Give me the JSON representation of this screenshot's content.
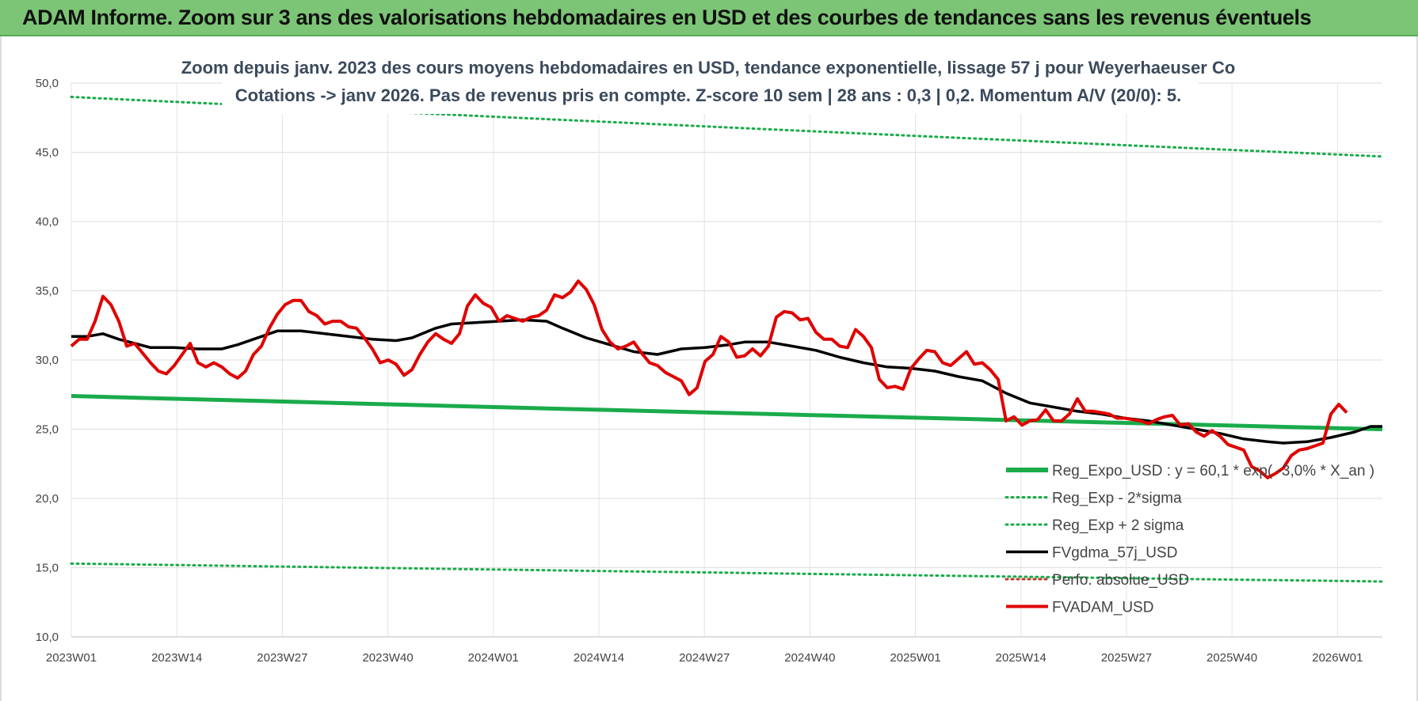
{
  "header": {
    "title": "ADAM Informe. Zoom sur 3 ans des valorisations hebdomadaires en USD et des courbes de tendances sans les revenus éventuels"
  },
  "chart_data": {
    "type": "line",
    "title": "Zoom depuis janv. 2023 des cours moyens hebdomadaires en USD, tendance exponentielle, lissage 57 j pour Weyerhaeuser Co",
    "subtitle": "Cotations -> janv 2026. Pas de revenus pris en compte. Z-score 10 sem | 28 ans : 0,3 | 0,2. Momentum A/V (20/0): 5.",
    "ylim": [
      10,
      50
    ],
    "yticks": [
      "10,0",
      "15,0",
      "20,0",
      "25,0",
      "30,0",
      "35,0",
      "40,0",
      "45,0",
      "50,0"
    ],
    "xticks": [
      "2023W01",
      "2023W14",
      "2023W27",
      "2023W40",
      "2024W01",
      "2024W14",
      "2024W27",
      "2024W40",
      "2025W01",
      "2025W14",
      "2025W27",
      "2025W40",
      "2026W01"
    ],
    "grid": true,
    "legend_position": "bottom-right",
    "x_count": 162,
    "series": [
      {
        "name": "Reg_Expo_USD : y = 60,1 * exp( -3,0% * X_an )",
        "color": "#1aab4b",
        "style": "solid-thick",
        "start": 27.4,
        "end": 25.0
      },
      {
        "name": "Reg_Exp - 2*sigma",
        "color": "#1aab4b",
        "style": "dotted",
        "start": 15.3,
        "end": 14.0
      },
      {
        "name": "Reg_Exp + 2 sigma",
        "color": "#1aab4b",
        "style": "dotted",
        "start": 49.0,
        "end": 44.7
      },
      {
        "name": "FVgdma_57j_USD",
        "color": "#000000",
        "style": "solid",
        "points": [
          [
            0,
            31.7
          ],
          [
            4,
            31.7
          ],
          [
            8,
            31.9
          ],
          [
            12,
            31.5
          ],
          [
            16,
            31.2
          ],
          [
            20,
            30.9
          ],
          [
            26,
            30.9
          ],
          [
            32,
            30.8
          ],
          [
            38,
            30.8
          ],
          [
            42,
            31.1
          ],
          [
            48,
            31.7
          ],
          [
            52,
            32.1
          ],
          [
            58,
            32.1
          ],
          [
            64,
            31.9
          ],
          [
            70,
            31.7
          ],
          [
            76,
            31.5
          ],
          [
            82,
            31.4
          ],
          [
            86,
            31.6
          ],
          [
            92,
            32.3
          ],
          [
            96,
            32.6
          ],
          [
            102,
            32.7
          ],
          [
            108,
            32.8
          ],
          [
            114,
            32.9
          ],
          [
            120,
            32.8
          ],
          [
            124,
            32.3
          ],
          [
            130,
            31.6
          ],
          [
            136,
            31.1
          ],
          [
            142,
            30.6
          ],
          [
            148,
            30.4
          ],
          [
            154,
            30.8
          ],
          [
            160,
            30.9
          ],
          [
            166,
            31.1
          ],
          [
            170,
            31.3
          ],
          [
            176,
            31.3
          ],
          [
            182,
            31.0
          ],
          [
            188,
            30.7
          ],
          [
            194,
            30.2
          ],
          [
            200,
            29.8
          ],
          [
            206,
            29.5
          ],
          [
            212,
            29.4
          ],
          [
            218,
            29.2
          ],
          [
            224,
            28.8
          ],
          [
            230,
            28.5
          ],
          [
            236,
            27.6
          ],
          [
            242,
            26.9
          ],
          [
            248,
            26.6
          ],
          [
            254,
            26.3
          ],
          [
            260,
            26.1
          ],
          [
            266,
            25.8
          ],
          [
            272,
            25.6
          ],
          [
            278,
            25.3
          ],
          [
            284,
            25.0
          ],
          [
            290,
            24.7
          ],
          [
            296,
            24.3
          ],
          [
            302,
            24.1
          ],
          [
            306,
            24.0
          ],
          [
            312,
            24.1
          ],
          [
            318,
            24.4
          ],
          [
            324,
            24.8
          ],
          [
            328,
            25.2
          ],
          [
            331,
            25.2
          ]
        ]
      },
      {
        "name": "Perfo. absolue_USD",
        "color": "#c0392b",
        "style": "dotted",
        "points": []
      },
      {
        "name": "FVADAM_USD",
        "color": "#e00000",
        "style": "solid",
        "points": [
          [
            0,
            31.0
          ],
          [
            2,
            31.5
          ],
          [
            4,
            31.5
          ],
          [
            6,
            32.8
          ],
          [
            8,
            34.6
          ],
          [
            10,
            34.0
          ],
          [
            12,
            32.8
          ],
          [
            14,
            31.0
          ],
          [
            16,
            31.2
          ],
          [
            18,
            30.5
          ],
          [
            20,
            29.8
          ],
          [
            22,
            29.2
          ],
          [
            24,
            29.0
          ],
          [
            26,
            29.6
          ],
          [
            28,
            30.4
          ],
          [
            30,
            31.2
          ],
          [
            32,
            29.8
          ],
          [
            34,
            29.5
          ],
          [
            36,
            29.8
          ],
          [
            38,
            29.5
          ],
          [
            40,
            29.0
          ],
          [
            42,
            28.7
          ],
          [
            44,
            29.2
          ],
          [
            46,
            30.4
          ],
          [
            48,
            31.0
          ],
          [
            50,
            32.3
          ],
          [
            52,
            33.3
          ],
          [
            54,
            34.0
          ],
          [
            56,
            34.3
          ],
          [
            58,
            34.3
          ],
          [
            60,
            33.5
          ],
          [
            62,
            33.2
          ],
          [
            64,
            32.6
          ],
          [
            66,
            32.8
          ],
          [
            68,
            32.8
          ],
          [
            70,
            32.4
          ],
          [
            72,
            32.3
          ],
          [
            74,
            31.6
          ],
          [
            76,
            30.8
          ],
          [
            78,
            29.8
          ],
          [
            80,
            30.0
          ],
          [
            82,
            29.7
          ],
          [
            84,
            28.9
          ],
          [
            86,
            29.3
          ],
          [
            88,
            30.4
          ],
          [
            90,
            31.3
          ],
          [
            92,
            31.9
          ],
          [
            94,
            31.5
          ],
          [
            96,
            31.2
          ],
          [
            98,
            31.9
          ],
          [
            100,
            33.9
          ],
          [
            102,
            34.7
          ],
          [
            104,
            34.1
          ],
          [
            106,
            33.8
          ],
          [
            108,
            32.8
          ],
          [
            110,
            33.2
          ],
          [
            112,
            33.0
          ],
          [
            114,
            32.8
          ],
          [
            116,
            33.1
          ],
          [
            118,
            33.2
          ],
          [
            120,
            33.6
          ],
          [
            122,
            34.7
          ],
          [
            124,
            34.5
          ],
          [
            126,
            34.9
          ],
          [
            128,
            35.7
          ],
          [
            130,
            35.1
          ],
          [
            132,
            34.0
          ],
          [
            134,
            32.2
          ],
          [
            136,
            31.3
          ],
          [
            138,
            30.8
          ],
          [
            140,
            31.0
          ],
          [
            142,
            31.3
          ],
          [
            144,
            30.5
          ],
          [
            146,
            29.8
          ],
          [
            148,
            29.6
          ],
          [
            150,
            29.1
          ],
          [
            152,
            28.8
          ],
          [
            154,
            28.5
          ],
          [
            156,
            27.5
          ],
          [
            158,
            28.0
          ],
          [
            160,
            29.9
          ],
          [
            162,
            30.4
          ],
          [
            164,
            31.7
          ],
          [
            166,
            31.3
          ],
          [
            168,
            30.2
          ],
          [
            170,
            30.3
          ],
          [
            172,
            30.8
          ],
          [
            174,
            30.3
          ],
          [
            176,
            31.0
          ],
          [
            178,
            33.1
          ],
          [
            180,
            33.5
          ],
          [
            182,
            33.4
          ],
          [
            184,
            32.9
          ],
          [
            186,
            33.0
          ],
          [
            188,
            32.0
          ],
          [
            190,
            31.5
          ],
          [
            192,
            31.5
          ],
          [
            194,
            31.0
          ],
          [
            196,
            30.9
          ],
          [
            198,
            32.2
          ],
          [
            200,
            31.7
          ],
          [
            202,
            30.9
          ],
          [
            204,
            28.6
          ],
          [
            206,
            28.0
          ],
          [
            208,
            28.1
          ],
          [
            210,
            27.9
          ],
          [
            212,
            29.4
          ],
          [
            214,
            30.1
          ],
          [
            216,
            30.7
          ],
          [
            218,
            30.6
          ],
          [
            220,
            29.8
          ],
          [
            222,
            29.6
          ],
          [
            224,
            30.1
          ],
          [
            226,
            30.6
          ],
          [
            228,
            29.7
          ],
          [
            230,
            29.8
          ],
          [
            232,
            29.3
          ],
          [
            234,
            28.6
          ],
          [
            236,
            25.6
          ],
          [
            238,
            25.9
          ],
          [
            240,
            25.3
          ],
          [
            242,
            25.6
          ],
          [
            244,
            25.7
          ],
          [
            246,
            26.4
          ],
          [
            248,
            25.6
          ],
          [
            250,
            25.6
          ],
          [
            252,
            26.1
          ],
          [
            254,
            27.2
          ],
          [
            256,
            26.3
          ],
          [
            258,
            26.3
          ],
          [
            260,
            26.2
          ],
          [
            262,
            26.1
          ],
          [
            264,
            25.8
          ],
          [
            266,
            25.8
          ],
          [
            268,
            25.7
          ],
          [
            270,
            25.6
          ],
          [
            272,
            25.4
          ],
          [
            274,
            25.7
          ],
          [
            276,
            25.9
          ],
          [
            278,
            26.0
          ],
          [
            280,
            25.3
          ],
          [
            282,
            25.4
          ],
          [
            284,
            24.8
          ],
          [
            286,
            24.5
          ],
          [
            288,
            24.9
          ],
          [
            290,
            24.5
          ],
          [
            292,
            23.9
          ],
          [
            294,
            23.7
          ],
          [
            296,
            23.5
          ],
          [
            298,
            22.3
          ],
          [
            300,
            22.0
          ],
          [
            302,
            21.5
          ],
          [
            304,
            21.8
          ],
          [
            306,
            22.2
          ],
          [
            308,
            23.1
          ],
          [
            310,
            23.5
          ],
          [
            312,
            23.6
          ],
          [
            314,
            23.8
          ],
          [
            316,
            24.0
          ],
          [
            318,
            26.1
          ],
          [
            320,
            26.8
          ],
          [
            322,
            26.2
          ]
        ]
      }
    ]
  }
}
